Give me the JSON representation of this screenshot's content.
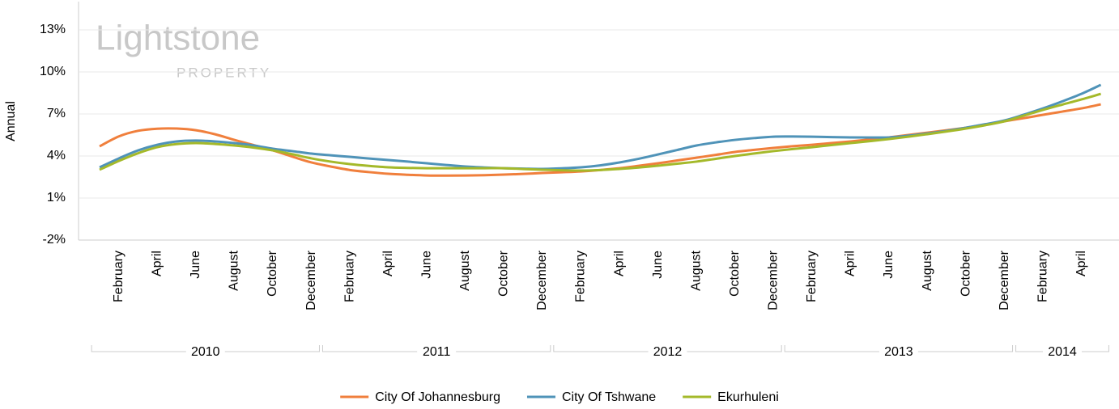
{
  "chart_data": {
    "type": "line",
    "y_label": "Annual",
    "watermark": {
      "brand": "Lightstone",
      "sub": "PROPERTY"
    },
    "categories": [
      null,
      "February",
      null,
      "April",
      null,
      "June",
      null,
      "August",
      null,
      "October",
      null,
      "December",
      null,
      "February",
      null,
      "April",
      null,
      "June",
      null,
      "August",
      null,
      "October",
      null,
      "December",
      null,
      "February",
      null,
      "April",
      null,
      "June",
      null,
      "August",
      null,
      "October",
      null,
      "December",
      null,
      "February",
      null,
      "April",
      null,
      "June",
      null,
      "August",
      null,
      "October",
      null,
      "December",
      null,
      "February",
      null,
      "April",
      null
    ],
    "year_groups": [
      {
        "label": "2010",
        "months": 12
      },
      {
        "label": "2011",
        "months": 12
      },
      {
        "label": "2012",
        "months": 12
      },
      {
        "label": "2013",
        "months": 12
      },
      {
        "label": "2014",
        "months": 5
      }
    ],
    "series": [
      {
        "name": "City Of Johannesburg",
        "color": "#f07f3c",
        "values": [
          4.69,
          5.4,
          5.8,
          5.95,
          5.96,
          5.84,
          5.55,
          5.15,
          4.78,
          4.4,
          3.96,
          3.54,
          3.25,
          3.0,
          2.85,
          2.73,
          2.66,
          2.61,
          2.6,
          2.61,
          2.63,
          2.67,
          2.72,
          2.79,
          2.84,
          2.9,
          3.0,
          3.13,
          3.3,
          3.48,
          3.68,
          3.88,
          4.08,
          4.29,
          4.44,
          4.58,
          4.7,
          4.8,
          4.92,
          5.04,
          5.18,
          5.33,
          5.5,
          5.67,
          5.84,
          6.02,
          6.25,
          6.48,
          6.7,
          6.94,
          7.17,
          7.4,
          7.69
        ]
      },
      {
        "name": "City Of Tshwane",
        "color": "#4f93b8",
        "values": [
          3.19,
          3.83,
          4.4,
          4.8,
          5.04,
          5.1,
          5.04,
          4.92,
          4.75,
          4.52,
          4.35,
          4.17,
          4.05,
          3.94,
          3.82,
          3.71,
          3.6,
          3.48,
          3.36,
          3.25,
          3.18,
          3.13,
          3.1,
          3.08,
          3.12,
          3.19,
          3.33,
          3.54,
          3.8,
          4.11,
          4.43,
          4.75,
          4.97,
          5.15,
          5.28,
          5.38,
          5.39,
          5.38,
          5.35,
          5.33,
          5.32,
          5.33,
          5.45,
          5.61,
          5.8,
          6.02,
          6.27,
          6.54,
          6.95,
          7.4,
          7.9,
          8.44,
          9.08
        ]
      },
      {
        "name": "Ekurhuleni",
        "color": "#a4b92a",
        "values": [
          3.02,
          3.65,
          4.2,
          4.63,
          4.85,
          4.92,
          4.86,
          4.75,
          4.6,
          4.4,
          4.13,
          3.83,
          3.6,
          3.42,
          3.29,
          3.19,
          3.15,
          3.13,
          3.13,
          3.13,
          3.13,
          3.13,
          3.07,
          3.02,
          2.98,
          2.96,
          3.0,
          3.08,
          3.18,
          3.31,
          3.45,
          3.6,
          3.8,
          4.0,
          4.18,
          4.35,
          4.5,
          4.63,
          4.78,
          4.92,
          5.06,
          5.21,
          5.38,
          5.56,
          5.75,
          5.96,
          6.2,
          6.48,
          6.88,
          7.29,
          7.67,
          8.04,
          8.44
        ]
      }
    ],
    "ylim": [
      -2,
      15
    ],
    "yticks": [
      {
        "value": -2,
        "label": "-2%"
      },
      {
        "value": 1,
        "label": "1%"
      },
      {
        "value": 4,
        "label": "4%"
      },
      {
        "value": 7,
        "label": "7%"
      },
      {
        "value": 10,
        "label": "10%"
      },
      {
        "value": 13,
        "label": "13%"
      }
    ],
    "grid": true
  }
}
